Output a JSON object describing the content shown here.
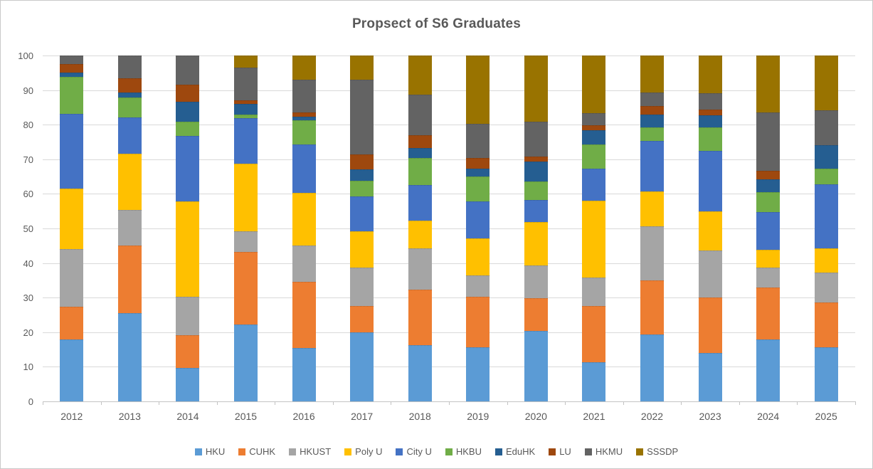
{
  "title": "Propsect of S6 Graduates",
  "colors": {
    "text": "#595959",
    "gridline": "#D9D9D9",
    "axis": "#C3C3C3",
    "border": "#C9C9C9",
    "background": "#FFFFFF"
  },
  "chart_data": {
    "type": "bar",
    "stacked": true,
    "stack_total": 100,
    "title": "Propsect of S6 Graduates",
    "xlabel": "",
    "ylabel": "",
    "ylim": [
      0,
      100
    ],
    "ytick_step": 10,
    "yticks": [
      0,
      10,
      20,
      30,
      40,
      50,
      60,
      70,
      80,
      90,
      100
    ],
    "grid": true,
    "legend_position": "bottom",
    "categories": [
      "2012",
      "2013",
      "2014",
      "2015",
      "2016",
      "2017",
      "2018",
      "2019",
      "2020",
      "2021",
      "2022",
      "2023",
      "2024",
      "2025"
    ],
    "series": [
      {
        "name": "HKU",
        "color": "#5B9BD5",
        "values": [
          17.8,
          25.6,
          9.6,
          22.2,
          15.4,
          20.0,
          16.2,
          15.7,
          20.3,
          11.3,
          19.4,
          14.0,
          17.9,
          15.7
        ]
      },
      {
        "name": "CUHK",
        "color": "#ED7D31",
        "values": [
          9.6,
          19.5,
          9.6,
          21.0,
          19.2,
          7.6,
          16.2,
          14.5,
          9.5,
          16.3,
          15.6,
          16.1,
          15.0,
          12.8
        ]
      },
      {
        "name": "HKUST",
        "color": "#A5A5A5",
        "values": [
          16.7,
          10.3,
          11.0,
          6.0,
          10.4,
          11.0,
          11.9,
          6.2,
          9.5,
          8.2,
          15.7,
          13.6,
          5.7,
          8.8
        ]
      },
      {
        "name": "Poly U",
        "color": "#FFC000",
        "values": [
          17.5,
          16.3,
          27.6,
          19.6,
          15.2,
          10.6,
          8.0,
          10.7,
          12.6,
          22.3,
          10.0,
          11.3,
          5.3,
          6.9
        ]
      },
      {
        "name": "City U",
        "color": "#4472C4",
        "values": [
          21.6,
          10.4,
          19.0,
          13.0,
          14.1,
          10.0,
          10.3,
          10.8,
          6.3,
          9.1,
          14.7,
          17.5,
          10.8,
          18.5
        ]
      },
      {
        "name": "HKBU",
        "color": "#70AD47",
        "values": [
          10.6,
          5.8,
          4.0,
          1.1,
          7.0,
          4.6,
          7.7,
          7.2,
          5.3,
          7.1,
          3.8,
          6.7,
          5.8,
          4.5
        ]
      },
      {
        "name": "EduHK",
        "color": "#255E91",
        "values": [
          1.3,
          1.4,
          5.8,
          3.2,
          1.1,
          3.3,
          2.9,
          2.1,
          5.9,
          4.0,
          3.8,
          3.6,
          3.6,
          6.9
        ]
      },
      {
        "name": "LU",
        "color": "#9E480E",
        "values": [
          2.5,
          4.1,
          5.0,
          1.0,
          1.2,
          4.2,
          3.8,
          3.1,
          1.3,
          1.6,
          2.4,
          1.5,
          2.5,
          0.0
        ]
      },
      {
        "name": "HKMU",
        "color": "#636363",
        "values": [
          2.4,
          6.6,
          8.4,
          9.3,
          9.4,
          21.8,
          11.7,
          9.9,
          10.2,
          3.4,
          3.8,
          4.7,
          16.9,
          10.0
        ]
      },
      {
        "name": "SSSDP",
        "color": "#997300",
        "values": [
          0.0,
          0.0,
          0.0,
          3.6,
          7.0,
          6.9,
          11.3,
          19.8,
          19.1,
          16.7,
          10.8,
          11.0,
          16.5,
          15.9
        ]
      }
    ]
  }
}
